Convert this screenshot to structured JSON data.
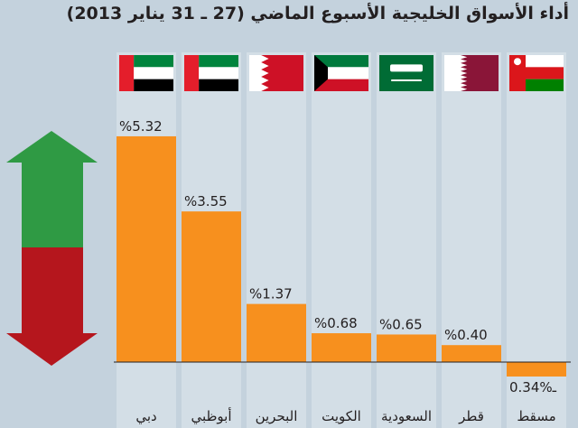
{
  "title": "أداء الأسواق الخليجية الأسبوع الماضي (27 ـ 31 يناير 2013)",
  "colors": {
    "background": "#c4d2dd",
    "column_bg": "#d3dee6",
    "bar": "#f7901e",
    "arrow_up": "#2f9a44",
    "arrow_down": "#b5161d"
  },
  "icons": [
    "arrow-up-down-icon"
  ],
  "chart_data": {
    "type": "bar",
    "title": "أداء الأسواق الخليجية الأسبوع الماضي (27 ـ 31 يناير 2013)",
    "categories": [
      "دبي",
      "أبوظبي",
      "البحرين",
      "الكويت",
      "السعودية",
      "قطر",
      "مسقط"
    ],
    "flags": [
      "uae-flag",
      "uae-flag",
      "bahrain-flag",
      "kuwait-flag",
      "saudi-flag",
      "qatar-flag",
      "oman-flag"
    ],
    "values": [
      5.32,
      3.55,
      1.37,
      0.68,
      0.65,
      0.4,
      -0.34
    ],
    "value_labels": [
      "%5.32",
      "%3.55",
      "%1.37",
      "%0.68",
      "%0.65",
      "%0.40",
      "ـ%0.34"
    ],
    "ylim": [
      -0.34,
      5.32
    ],
    "grid": false,
    "legend": "none"
  }
}
